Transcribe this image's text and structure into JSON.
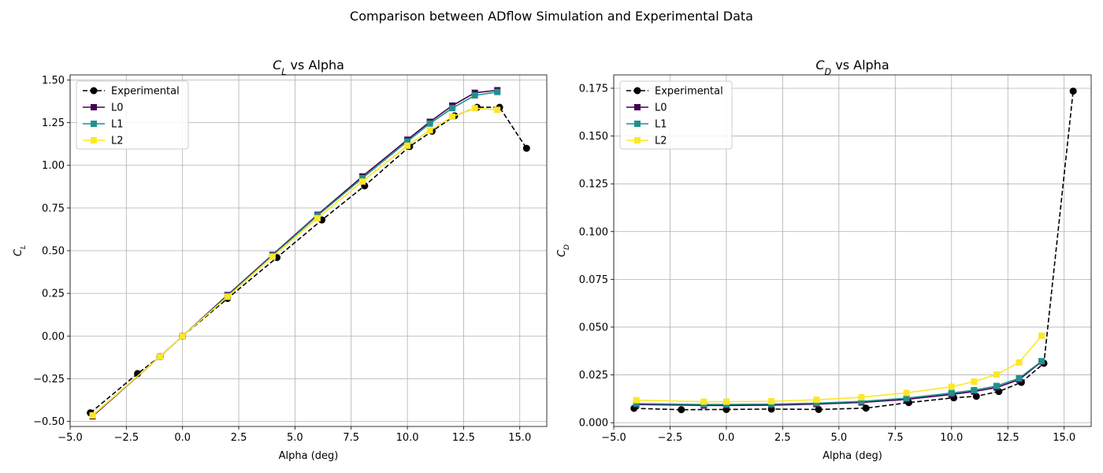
{
  "figure": {
    "suptitle": "Comparison between ADflow Simulation and Experimental Data"
  },
  "chart_data": [
    {
      "type": "line",
      "title_main": "C",
      "title_sub": "L",
      "title_rest": " vs Alpha",
      "xlabel": "Alpha (deg)",
      "ylabel_main": "C",
      "ylabel_sub": "L",
      "xlim": [
        -5.0,
        16.2
      ],
      "ylim": [
        -0.53,
        1.53
      ],
      "xticks": [
        -5.0,
        -2.5,
        0.0,
        2.5,
        5.0,
        7.5,
        10.0,
        12.5,
        15.0
      ],
      "xtick_labels": [
        "−5.0",
        "−2.5",
        "0.0",
        "2.5",
        "5.0",
        "7.5",
        "10.0",
        "12.5",
        "15.0"
      ],
      "yticks": [
        -0.5,
        -0.25,
        0.0,
        0.25,
        0.5,
        0.75,
        1.0,
        1.25,
        1.5
      ],
      "ytick_labels": [
        "−0.50",
        "−0.25",
        "0.00",
        "0.25",
        "0.50",
        "0.75",
        "1.00",
        "1.25",
        "1.50"
      ],
      "grid": true,
      "legend_position": "upper-left",
      "series": [
        {
          "name": "Experimental",
          "color": "#000000",
          "linestyle": "dashed",
          "marker": "circle",
          "x": [
            -4.1,
            -2.0,
            -1.0,
            0.0,
            2.0,
            4.2,
            6.2,
            8.1,
            10.1,
            11.1,
            12.1,
            13.1,
            14.1,
            15.3
          ],
          "y": [
            -0.45,
            -0.22,
            -0.12,
            0.0,
            0.22,
            0.46,
            0.68,
            0.88,
            1.11,
            1.2,
            1.29,
            1.34,
            1.34,
            1.1
          ]
        },
        {
          "name": "L0",
          "color": "#440154",
          "linestyle": "solid",
          "marker": "square",
          "x": [
            -4.0,
            -1.0,
            0.0,
            2.0,
            4.0,
            6.0,
            8.0,
            10.0,
            11.0,
            12.0,
            13.0,
            14.0
          ],
          "y": [
            -0.47,
            -0.12,
            0.0,
            0.24,
            0.475,
            0.71,
            0.935,
            1.15,
            1.255,
            1.35,
            1.425,
            1.44
          ]
        },
        {
          "name": "L1",
          "color": "#21918c",
          "linestyle": "solid",
          "marker": "square",
          "x": [
            -4.0,
            -1.0,
            0.0,
            2.0,
            4.0,
            6.0,
            8.0,
            10.0,
            11.0,
            12.0,
            13.0,
            14.0
          ],
          "y": [
            -0.465,
            -0.12,
            0.0,
            0.235,
            0.47,
            0.705,
            0.925,
            1.14,
            1.245,
            1.335,
            1.41,
            1.43
          ]
        },
        {
          "name": "L2",
          "color": "#fde725",
          "linestyle": "solid",
          "marker": "square",
          "x": [
            -4.0,
            -1.0,
            0.0,
            2.0,
            4.0,
            6.0,
            8.0,
            10.0,
            11.0,
            12.0,
            13.0,
            14.0
          ],
          "y": [
            -0.465,
            -0.12,
            0.0,
            0.23,
            0.465,
            0.69,
            0.905,
            1.115,
            1.205,
            1.285,
            1.335,
            1.325
          ]
        }
      ]
    },
    {
      "type": "line",
      "title_main": "C",
      "title_sub": "D",
      "title_rest": " vs Alpha",
      "xlabel": "Alpha (deg)",
      "ylabel_main": "C",
      "ylabel_sub": "D",
      "xlim": [
        -5.0,
        16.2
      ],
      "ylim": [
        -0.002,
        0.182
      ],
      "xticks": [
        -5.0,
        -2.5,
        0.0,
        2.5,
        5.0,
        7.5,
        10.0,
        12.5,
        15.0
      ],
      "xtick_labels": [
        "−5.0",
        "−2.5",
        "0.0",
        "2.5",
        "5.0",
        "7.5",
        "10.0",
        "12.5",
        "15.0"
      ],
      "yticks": [
        0.0,
        0.025,
        0.05,
        0.075,
        0.1,
        0.125,
        0.15,
        0.175
      ],
      "ytick_labels": [
        "0.000",
        "0.025",
        "0.050",
        "0.075",
        "0.100",
        "0.125",
        "0.150",
        "0.175"
      ],
      "grid": true,
      "legend_position": "upper-left",
      "series": [
        {
          "name": "Experimental",
          "color": "#000000",
          "linestyle": "dashed",
          "marker": "circle",
          "x": [
            -4.1,
            -2.0,
            0.0,
            2.0,
            4.1,
            6.2,
            8.1,
            10.1,
            11.1,
            12.1,
            13.1,
            14.1,
            15.4
          ],
          "y": [
            0.0075,
            0.0068,
            0.0069,
            0.0071,
            0.0069,
            0.0076,
            0.0105,
            0.013,
            0.0138,
            0.0163,
            0.0211,
            0.0311,
            0.1735
          ]
        },
        {
          "name": "L0",
          "color": "#440154",
          "linestyle": "solid",
          "marker": "square",
          "x": [
            -4.0,
            -1.0,
            0.0,
            2.0,
            4.0,
            6.0,
            8.0,
            10.0,
            11.0,
            12.0,
            13.0,
            14.0
          ],
          "y": [
            0.0095,
            0.009,
            0.009,
            0.0092,
            0.0097,
            0.0106,
            0.0122,
            0.0148,
            0.0163,
            0.0184,
            0.0225,
            0.032
          ]
        },
        {
          "name": "L1",
          "color": "#21918c",
          "linestyle": "solid",
          "marker": "square",
          "x": [
            -4.0,
            -1.0,
            0.0,
            2.0,
            4.0,
            6.0,
            8.0,
            10.0,
            11.0,
            12.0,
            13.0,
            14.0
          ],
          "y": [
            0.01,
            0.0095,
            0.0095,
            0.0097,
            0.0102,
            0.0111,
            0.0128,
            0.0155,
            0.017,
            0.0192,
            0.0232,
            0.0322
          ]
        },
        {
          "name": "L2",
          "color": "#fde725",
          "linestyle": "solid",
          "marker": "square",
          "x": [
            -4.0,
            -1.0,
            0.0,
            2.0,
            4.0,
            6.0,
            8.0,
            10.0,
            11.0,
            12.0,
            13.0,
            14.0
          ],
          "y": [
            0.0118,
            0.011,
            0.011,
            0.0112,
            0.012,
            0.0133,
            0.0156,
            0.0188,
            0.0215,
            0.0252,
            0.0315,
            0.0455
          ]
        }
      ]
    }
  ]
}
